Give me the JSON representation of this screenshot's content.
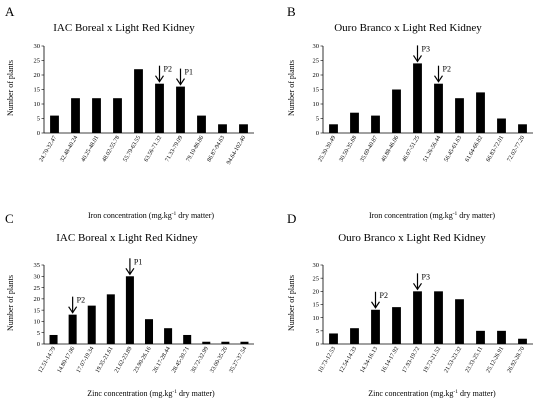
{
  "chart_data": [
    {
      "panel_label": "A",
      "type": "bar",
      "title": "IAC Boreal x Light Red Kidney",
      "xlabel_main": "Iron concentration (mg.kg",
      "xlabel_sup": "-1",
      "xlabel_tail": " dry matter)",
      "ylabel": "Number of plants",
      "ylim": [
        0,
        30
      ],
      "yticks": [
        "0",
        "5",
        "10",
        "15",
        "20",
        "25",
        "30"
      ],
      "categories": [
        "24.70-32.47",
        "32.48-40.24",
        "40.25-48.01",
        "48.02-55.78",
        "55.79-63.55",
        "63.56-71.32",
        "71.33-79.09",
        "79.10-86.86",
        "86.87-94.63",
        "94.64-102.40"
      ],
      "values": [
        6,
        12,
        12,
        12,
        22,
        17,
        16,
        6,
        3,
        3
      ],
      "annotations": [
        {
          "label": "P2",
          "index": 5
        },
        {
          "label": "P1",
          "index": 6
        }
      ]
    },
    {
      "panel_label": "B",
      "type": "bar",
      "title": "Ouro Branco x Light Red Kidney",
      "xlabel_main": "Iron concentration (mg.kg",
      "xlabel_sup": "-1",
      "xlabel_tail": " dry matter)",
      "ylabel": "Number of plants",
      "ylim": [
        0,
        30
      ],
      "yticks": [
        "0",
        "5",
        "10",
        "15",
        "20",
        "25",
        "30"
      ],
      "categories": [
        "25.30-30.49",
        "30.50-35.68",
        "35.69-40.87",
        "40.88-46.06",
        "46.07-51.25",
        "51.26-56.44",
        "56.45-61.63",
        "61.64-66.82",
        "66.83-72.01",
        "72.02-77.20"
      ],
      "values": [
        3,
        7,
        6,
        15,
        24,
        17,
        12,
        14,
        5,
        3
      ],
      "annotations": [
        {
          "label": "P3",
          "index": 4
        },
        {
          "label": "P2",
          "index": 5
        }
      ]
    },
    {
      "panel_label": "C",
      "type": "bar",
      "title": "IAC Boreal x Light Red Kidney",
      "xlabel_main": "Zinc concentration (mg.kg",
      "xlabel_sup": "-1",
      "xlabel_tail": " dry matter)",
      "ylabel": "Number of plants",
      "ylim": [
        0,
        35
      ],
      "yticks": [
        "0",
        "5",
        "10",
        "15",
        "20",
        "25",
        "30",
        "35"
      ],
      "categories": [
        "12.51-14.79",
        "14.80-17.06",
        "17.07-19.34",
        "19.35-21.61",
        "21.62-23.89",
        "23.90-26.16",
        "26.17-28.44",
        "28.45-30.71",
        "30.72-32.99",
        "33.00-35.26",
        "35.27-37.54"
      ],
      "values": [
        4,
        13,
        17,
        22,
        30,
        11,
        7,
        4,
        1,
        1,
        1
      ],
      "annotations": [
        {
          "label": "P2",
          "index": 1
        },
        {
          "label": "P1",
          "index": 4
        }
      ]
    },
    {
      "panel_label": "D",
      "type": "bar",
      "title": "Ouro Branco x Light Red Kidney",
      "xlabel_main": "Zinc concentration (mg.kg",
      "xlabel_sup": "-1",
      "xlabel_tail": " dry matter)",
      "ylabel": "Number of plants",
      "ylim": [
        0,
        30
      ],
      "yticks": [
        "0",
        "5",
        "10",
        "15",
        "20",
        "25",
        "30"
      ],
      "categories": [
        "10.73-12.53",
        "12.54-14.33",
        "14.34-16.13",
        "16.14-17.92",
        "17.93-19.72",
        "19.73-21.52",
        "21.53-23.32",
        "23.33-25.11",
        "25.12-26.91",
        "26.92-28.70"
      ],
      "values": [
        4,
        6,
        13,
        14,
        20,
        20,
        17,
        5,
        5,
        2
      ],
      "annotations": [
        {
          "label": "P2",
          "index": 2
        },
        {
          "label": "P3",
          "index": 4
        }
      ]
    }
  ]
}
